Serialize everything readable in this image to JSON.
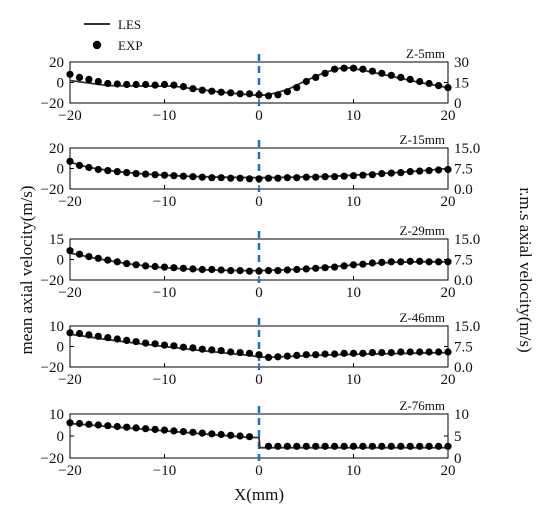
{
  "figure": {
    "left_ylabel": "mean axial velocity(m/s)",
    "right_ylabel": "r.m.s axial velocity(m/s)",
    "xlabel": "X(mm)"
  },
  "legend": {
    "position": "top-left",
    "items": [
      {
        "label": "LES",
        "marker": "line",
        "color": "#333333"
      },
      {
        "label": "EXP",
        "marker": "dot",
        "color": "#000000"
      }
    ]
  },
  "colors": {
    "les": "#333333",
    "exp": "#000000",
    "centerline": "#1f6fd1",
    "axis": "#000000"
  },
  "chart_data": [
    {
      "type": "line",
      "panel_label": "Z-5mm",
      "xlim": [
        -20,
        20
      ],
      "xticks": [
        "−20",
        "−10",
        "0",
        "10",
        "20"
      ],
      "ylim": [
        -20,
        20
      ],
      "yticks": [
        "20",
        "0",
        "−20"
      ],
      "right_ticks": [
        "30",
        "15",
        "0"
      ],
      "vertical_line_x": 0,
      "series": [
        {
          "name": "LES",
          "x": [
            -20,
            -16,
            -12,
            -9,
            -7,
            -4,
            -1,
            0,
            1,
            3,
            5,
            7,
            9,
            11,
            14,
            17,
            20
          ],
          "y": [
            2,
            -3,
            -3.5,
            -3.5,
            -6,
            -9.5,
            -12,
            -12.5,
            -12,
            -7,
            2,
            10,
            15,
            12,
            6,
            0,
            -5
          ]
        },
        {
          "name": "EXP",
          "x": [
            -20,
            -19,
            -18,
            -17,
            -16,
            -15,
            -14,
            -13,
            -12,
            -11,
            -10,
            -9,
            -8,
            -7,
            -6,
            -5,
            -4,
            -3,
            -2,
            -1,
            0,
            1,
            2,
            3,
            4,
            5,
            6,
            7,
            8,
            9,
            10,
            11,
            12,
            13,
            14,
            15,
            16,
            17,
            18,
            19,
            20
          ],
          "y": [
            8,
            5,
            3,
            1,
            -1,
            -1.5,
            -2,
            -2,
            -2,
            -2.5,
            -2,
            -2.5,
            -4,
            -6,
            -7.5,
            -8.5,
            -9.5,
            -10,
            -11,
            -11,
            -12,
            -13,
            -12,
            -9,
            -5,
            1,
            5,
            9,
            13,
            14,
            14,
            13,
            11,
            9,
            7,
            5,
            3,
            1,
            -1,
            -3,
            -5
          ]
        }
      ]
    },
    {
      "type": "line",
      "panel_label": "Z-15mm",
      "xlim": [
        -20,
        20
      ],
      "xticks": [
        "−20",
        "−10",
        "0",
        "10",
        "20"
      ],
      "ylim": [
        -20,
        20
      ],
      "yticks": [
        "20",
        "0",
        "−20"
      ],
      "right_ticks": [
        "15.0",
        "7.5",
        "0.0"
      ],
      "vertical_line_x": 0,
      "series": [
        {
          "name": "LES",
          "x": [
            -20,
            -18,
            -15,
            -12,
            -8,
            -4,
            0,
            4,
            8,
            12,
            16,
            20
          ],
          "y": [
            6,
            1,
            -3,
            -5.5,
            -7.5,
            -8.5,
            -9,
            -8.5,
            -7.5,
            -5.5,
            -3,
            0
          ]
        },
        {
          "name": "EXP",
          "x": [
            -20,
            -19,
            -18,
            -17,
            -16,
            -15,
            -14,
            -13,
            -12,
            -11,
            -10,
            -9,
            -8,
            -7,
            -6,
            -5,
            -4,
            -3,
            -2,
            -1,
            0,
            1,
            2,
            3,
            4,
            5,
            6,
            7,
            8,
            9,
            10,
            11,
            12,
            13,
            14,
            15,
            16,
            17,
            18,
            19,
            20
          ],
          "y": [
            7,
            3,
            1,
            -1,
            -2,
            -3,
            -4,
            -5,
            -5.5,
            -6,
            -6.5,
            -7,
            -7.5,
            -8,
            -8.5,
            -9,
            -9,
            -9.5,
            -9.5,
            -10,
            -10,
            -9.5,
            -9.5,
            -9,
            -9,
            -8.5,
            -8.5,
            -8,
            -8,
            -7.5,
            -7,
            -6.5,
            -6,
            -5,
            -4.5,
            -4,
            -3,
            -2.5,
            -2,
            -1.5,
            -1
          ]
        }
      ]
    },
    {
      "type": "line",
      "panel_label": "Z-29mm",
      "xlim": [
        -20,
        20
      ],
      "xticks": [
        "−20",
        "−10",
        "0",
        "10",
        "20"
      ],
      "ylim": [
        -20,
        15
      ],
      "yticks": [
        "15",
        "0",
        "−20"
      ],
      "right_ticks": [
        "15.0",
        "7.5",
        "0.0"
      ],
      "vertical_line_x": 0,
      "series": [
        {
          "name": "LES",
          "x": [
            -20,
            -17,
            -14,
            -11,
            -8,
            -5,
            -2,
            0,
            2,
            5,
            8,
            11,
            14,
            17,
            20
          ],
          "y": [
            3,
            -2,
            -6,
            -9,
            -10.5,
            -11.5,
            -12,
            -12,
            -11.5,
            -10.5,
            -8.5,
            -6.5,
            -5,
            -4.5,
            -4.5
          ]
        },
        {
          "name": "EXP",
          "x": [
            -20,
            -19,
            -18,
            -17,
            -16,
            -15,
            -14,
            -13,
            -12,
            -11,
            -10,
            -9,
            -8,
            -7,
            -6,
            -5,
            -4,
            -3,
            -2,
            -1,
            0,
            1,
            2,
            3,
            4,
            5,
            6,
            7,
            8,
            9,
            10,
            11,
            12,
            13,
            14,
            15,
            16,
            17,
            18,
            19,
            20
          ],
          "y": [
            5,
            2,
            0,
            -1.5,
            -3,
            -4.5,
            -6,
            -7,
            -8,
            -8.5,
            -9,
            -9.5,
            -10,
            -10.5,
            -11,
            -11,
            -11.5,
            -12,
            -12,
            -12.5,
            -12.5,
            -12,
            -12,
            -11.5,
            -11,
            -10.5,
            -10,
            -9.5,
            -9,
            -8,
            -7,
            -6.5,
            -5.5,
            -5,
            -4.5,
            -4.5,
            -4,
            -4,
            -4.5,
            -4.5,
            -4.5
          ]
        }
      ]
    },
    {
      "type": "line",
      "panel_label": "Z-46mm",
      "xlim": [
        -20,
        20
      ],
      "xticks": [
        "−20",
        "−10",
        "0",
        "10",
        "20"
      ],
      "ylim": [
        -20,
        10
      ],
      "yticks": [
        "10",
        "0",
        "−20"
      ],
      "right_ticks": [
        "15.0",
        "7.5",
        "0.0"
      ],
      "vertical_line_x": 0,
      "series": [
        {
          "name": "LES",
          "x": [
            -20,
            -16,
            -12,
            -8,
            -4,
            -1,
            0,
            1,
            4,
            8,
            12,
            16,
            20
          ],
          "y": [
            4,
            0,
            -3.5,
            -6.5,
            -9.5,
            -11.5,
            -12.5,
            -13,
            -12,
            -11,
            -10.5,
            -10,
            -9.5
          ]
        },
        {
          "name": "EXP",
          "x": [
            -20,
            -19,
            -18,
            -17,
            -16,
            -15,
            -14,
            -13,
            -12,
            -11,
            -10,
            -9,
            -8,
            -7,
            -6,
            -5,
            -4,
            -3,
            -2,
            -1,
            0,
            1,
            2,
            3,
            4,
            5,
            6,
            7,
            8,
            9,
            10,
            11,
            12,
            13,
            14,
            15,
            16,
            17,
            18,
            19,
            20
          ],
          "y": [
            5,
            4.5,
            3.5,
            2.5,
            1.5,
            0.5,
            -0.5,
            -1.5,
            -2.5,
            -3,
            -4,
            -4.5,
            -5.5,
            -6,
            -7,
            -7.5,
            -8,
            -9,
            -9.5,
            -10,
            -11,
            -13,
            -12.5,
            -12,
            -11.5,
            -11,
            -11,
            -10.5,
            -10.5,
            -10,
            -10,
            -10,
            -9.5,
            -9.5,
            -9.5,
            -9,
            -9,
            -9,
            -9,
            -9,
            -9
          ]
        }
      ]
    },
    {
      "type": "line",
      "panel_label": "Z-76mm",
      "xlim": [
        -20,
        20
      ],
      "xticks": [
        "−20",
        "−10",
        "0",
        "10",
        "20"
      ],
      "ylim": [
        -20,
        10
      ],
      "yticks": [
        "10",
        "0",
        "−20"
      ],
      "right_ticks": [
        "10",
        "5",
        "0"
      ],
      "vertical_line_x": 0,
      "series": [
        {
          "name": "LES",
          "x": [
            -20,
            -16,
            -12,
            -8,
            -4,
            -1,
            0,
            0.1,
            2,
            6,
            10,
            14,
            18,
            20
          ],
          "y": [
            3.5,
            1.5,
            -0.5,
            -2.5,
            -4.5,
            -6,
            -6,
            -13,
            -13,
            -13,
            -13,
            -13,
            -13,
            -13
          ]
        },
        {
          "name": "EXP",
          "x": [
            -20,
            -19,
            -18,
            -17,
            -16,
            -15,
            -14,
            -13,
            -12,
            -11,
            -10,
            -9,
            -8,
            -7,
            -6,
            -5,
            -4,
            -3,
            -2,
            -1,
            1,
            2,
            3,
            4,
            5,
            6,
            7,
            8,
            9,
            10,
            11,
            12,
            13,
            14,
            15,
            16,
            17,
            18,
            19,
            20
          ],
          "y": [
            4,
            3.5,
            3,
            2.5,
            2,
            1.5,
            1,
            0.5,
            0,
            -0.5,
            -1,
            -1.5,
            -2,
            -2.5,
            -3,
            -3.5,
            -4,
            -4.5,
            -5,
            -5.5,
            -12,
            -12,
            -12,
            -12,
            -12,
            -12,
            -12,
            -12,
            -12,
            -12,
            -12,
            -12,
            -12,
            -12,
            -12,
            -12,
            -12,
            -12,
            -12,
            -12
          ]
        }
      ]
    }
  ]
}
